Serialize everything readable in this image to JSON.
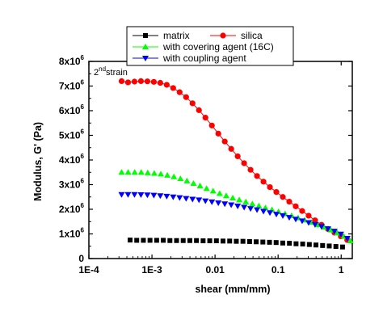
{
  "chart_data": {
    "type": "scatter",
    "xlabel": "shear (mm/mm)",
    "ylabel": "Modulus, G' (Pa)",
    "x_scale": "log",
    "xlim": [
      0.0001,
      1.5
    ],
    "ylim": [
      0,
      8000000
    ],
    "x_ticks": [
      {
        "value": 0.0001,
        "label": "1E-4"
      },
      {
        "value": 0.001,
        "label": "1E-3"
      },
      {
        "value": 0.01,
        "label": "0.01"
      },
      {
        "value": 0.1,
        "label": "0.1"
      },
      {
        "value": 1,
        "label": "1"
      }
    ],
    "y_ticks": [
      {
        "value": 0,
        "base": "0",
        "exp": ""
      },
      {
        "value": 1000000,
        "base": "1x10",
        "exp": "6"
      },
      {
        "value": 2000000,
        "base": "2x10",
        "exp": "6"
      },
      {
        "value": 3000000,
        "base": "3x10",
        "exp": "6"
      },
      {
        "value": 4000000,
        "base": "4x10",
        "exp": "6"
      },
      {
        "value": 5000000,
        "base": "5x10",
        "exp": "6"
      },
      {
        "value": 6000000,
        "base": "6x10",
        "exp": "6"
      },
      {
        "value": 7000000,
        "base": "7x10",
        "exp": "6"
      },
      {
        "value": 8000000,
        "base": "8x10",
        "exp": "6"
      }
    ],
    "annotation": {
      "base": "2",
      "sup": "nd",
      "rest": "strain"
    },
    "grid": false,
    "legend_position": "top",
    "series": [
      {
        "name": "matrix",
        "marker": "square",
        "color": "#000000",
        "connected": false,
        "x_range": [
          0.00045,
          1.05
        ],
        "n": 33,
        "y": [
          0.75,
          0.74,
          0.74,
          0.74,
          0.74,
          0.74,
          0.73,
          0.73,
          0.73,
          0.73,
          0.73,
          0.72,
          0.72,
          0.72,
          0.71,
          0.71,
          0.7,
          0.7,
          0.69,
          0.68,
          0.67,
          0.66,
          0.65,
          0.63,
          0.62,
          0.6,
          0.59,
          0.57,
          0.55,
          0.53,
          0.51,
          0.49,
          0.47
        ]
      },
      {
        "name": "silica",
        "marker": "circle",
        "color": "#ff0000",
        "connected": true,
        "x_range": [
          0.00033,
          1.25
        ],
        "n": 36,
        "y": [
          7.2,
          7.15,
          7.18,
          7.2,
          7.19,
          7.17,
          7.13,
          7.05,
          6.92,
          6.75,
          6.55,
          6.3,
          6.02,
          5.72,
          5.4,
          5.07,
          4.75,
          4.45,
          4.15,
          3.87,
          3.6,
          3.35,
          3.12,
          2.9,
          2.7,
          2.5,
          2.31,
          2.12,
          1.93,
          1.74,
          1.55,
          1.37,
          1.2,
          1.05,
          0.9,
          0.75
        ]
      },
      {
        "name": "with covering agent (16C)",
        "marker": "triangle-up",
        "color": "#00ff00",
        "connected": false,
        "x_range": [
          0.00033,
          1.4
        ],
        "n": 36,
        "y": [
          3.5,
          3.5,
          3.5,
          3.5,
          3.48,
          3.46,
          3.43,
          3.38,
          3.32,
          3.24,
          3.15,
          3.05,
          2.95,
          2.84,
          2.74,
          2.64,
          2.55,
          2.46,
          2.38,
          2.3,
          2.22,
          2.14,
          2.06,
          1.98,
          1.9,
          1.82,
          1.74,
          1.65,
          1.56,
          1.47,
          1.37,
          1.27,
          1.16,
          1.04,
          0.9,
          0.72
        ]
      },
      {
        "name": "with coupling agent",
        "marker": "triangle-down",
        "color": "#0000ff",
        "connected": false,
        "x_range": [
          0.00033,
          1.25
        ],
        "n": 36,
        "y": [
          2.6,
          2.6,
          2.6,
          2.59,
          2.58,
          2.57,
          2.55,
          2.53,
          2.5,
          2.47,
          2.44,
          2.41,
          2.38,
          2.34,
          2.3,
          2.26,
          2.22,
          2.18,
          2.13,
          2.08,
          2.03,
          1.98,
          1.92,
          1.86,
          1.8,
          1.74,
          1.67,
          1.6,
          1.53,
          1.46,
          1.38,
          1.3,
          1.21,
          1.11,
          0.99,
          0.82
        ]
      }
    ],
    "y_unit_multiplier": 1000000
  }
}
